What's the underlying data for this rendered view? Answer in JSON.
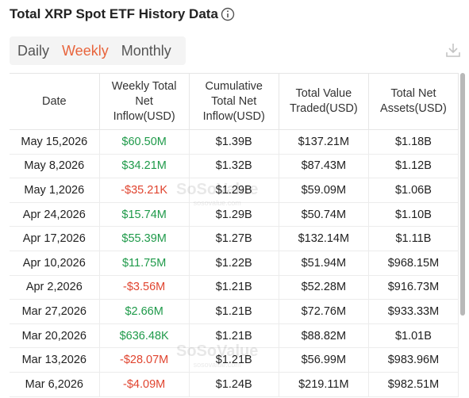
{
  "header": {
    "title": "Total XRP Spot ETF History Data"
  },
  "tabs": {
    "items": [
      "Daily",
      "Weekly",
      "Monthly"
    ],
    "active": 1
  },
  "watermark": {
    "brand": "SoSoValue",
    "site": "sosovalue.com"
  },
  "table": {
    "columns": [
      "Date",
      "Weekly Total Net Inflow(USD)",
      "Cumulative Total Net Inflow(USD)",
      "Total Value Traded(USD)",
      "Total Net Assets(USD)"
    ],
    "rows": [
      [
        "May 15,2026",
        "$60.50M",
        "$1.39B",
        "$137.21M",
        "$1.18B"
      ],
      [
        "May 8,2026",
        "$34.21M",
        "$1.32B",
        "$87.43M",
        "$1.12B"
      ],
      [
        "May 1,2026",
        "-$35.21K",
        "$1.29B",
        "$59.09M",
        "$1.06B"
      ],
      [
        "Apr 24,2026",
        "$15.74M",
        "$1.29B",
        "$50.74M",
        "$1.10B"
      ],
      [
        "Apr 17,2026",
        "$55.39M",
        "$1.27B",
        "$132.14M",
        "$1.11B"
      ],
      [
        "Apr 10,2026",
        "$11.75M",
        "$1.22B",
        "$51.94M",
        "$968.15M"
      ],
      [
        "Apr 2,2026",
        "-$3.56M",
        "$1.21B",
        "$52.28M",
        "$916.73M"
      ],
      [
        "Mar 27,2026",
        "$2.66M",
        "$1.21B",
        "$72.76M",
        "$933.33M"
      ],
      [
        "Mar 20,2026",
        "$636.48K",
        "$1.21B",
        "$88.82M",
        "$1.01B"
      ],
      [
        "Mar 13,2026",
        "-$28.07M",
        "$1.21B",
        "$56.99M",
        "$983.96M"
      ],
      [
        "Mar 6,2026",
        "-$4.09M",
        "$1.24B",
        "$219.11M",
        "$982.51M"
      ]
    ]
  }
}
